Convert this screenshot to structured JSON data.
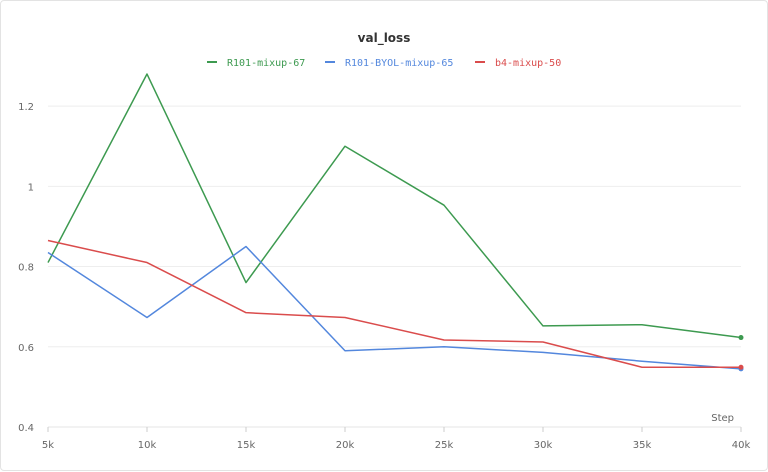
{
  "chart_data": {
    "type": "line",
    "title": "val_loss",
    "xlabel": "Step",
    "ylabel": "",
    "x": [
      5000,
      10000,
      15000,
      20000,
      25000,
      30000,
      35000,
      40000
    ],
    "x_tick_labels": [
      "5k",
      "10k",
      "15k",
      "20k",
      "25k",
      "30k",
      "35k",
      "40k"
    ],
    "xlim": [
      5000,
      40000
    ],
    "ylim": [
      0.4,
      1.3
    ],
    "y_ticks": [
      0.4,
      0.6,
      0.8,
      1.0,
      1.2
    ],
    "y_tick_labels": [
      "0.4",
      "0.6",
      "0.8",
      "1",
      "1.2"
    ],
    "grid": true,
    "legend_position": "top-center",
    "series": [
      {
        "name": "R101-mixup-67",
        "color": "#3d9a50",
        "values": [
          0.81,
          1.28,
          0.76,
          1.1,
          0.953,
          0.652,
          0.655,
          0.623
        ]
      },
      {
        "name": "R101-BYOL-mixup-65",
        "color": "#5387dd",
        "values": [
          0.835,
          0.673,
          0.85,
          0.59,
          0.6,
          0.586,
          0.564,
          0.545
        ]
      },
      {
        "name": "b4-mixup-50",
        "color": "#da4c4c",
        "values": [
          0.865,
          0.81,
          0.685,
          0.673,
          0.617,
          0.612,
          0.549,
          0.549
        ]
      }
    ]
  }
}
